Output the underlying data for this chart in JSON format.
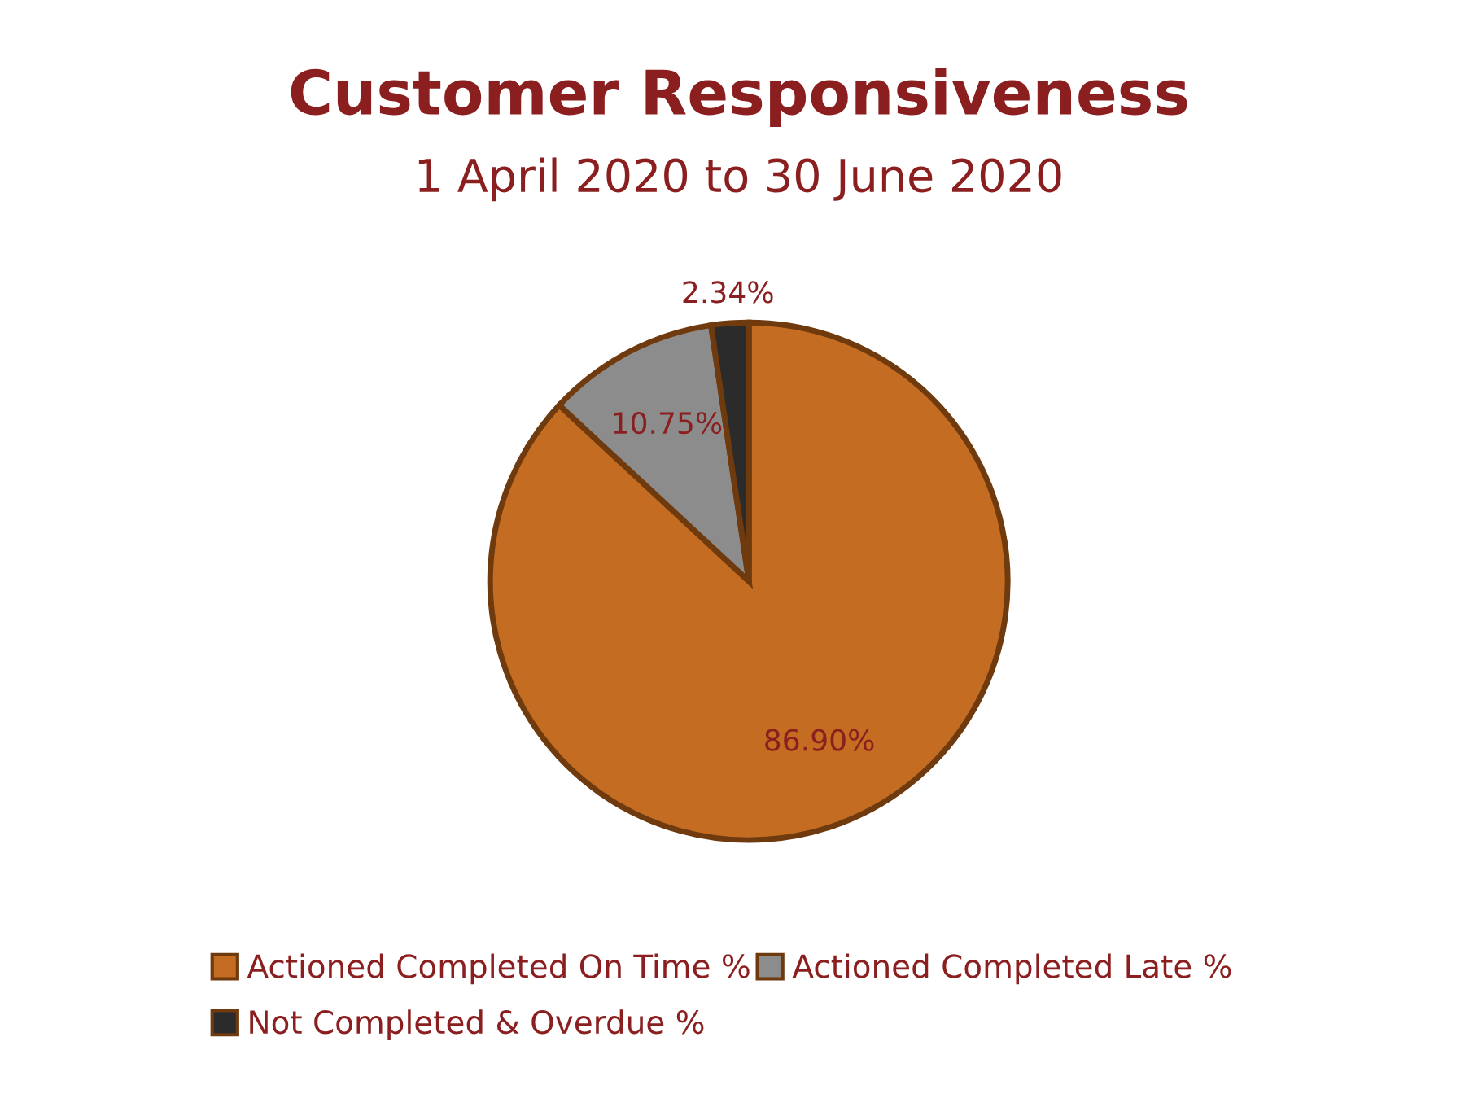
{
  "chart_data": {
    "type": "pie",
    "title": "Customer Responsiveness",
    "subtitle": "1 April 2020 to 30 June 2020",
    "categories": [
      "Actioned Completed On Time %",
      "Actioned Completed Late %",
      "Not Completed & Overdue %"
    ],
    "values": [
      86.9,
      10.75,
      2.34
    ],
    "value_labels": [
      "86.90%",
      "10.75%",
      "2.34%"
    ],
    "colors": [
      "#c46c22",
      "#8c8c8c",
      "#2b2b2b"
    ],
    "legend": "bottom"
  }
}
